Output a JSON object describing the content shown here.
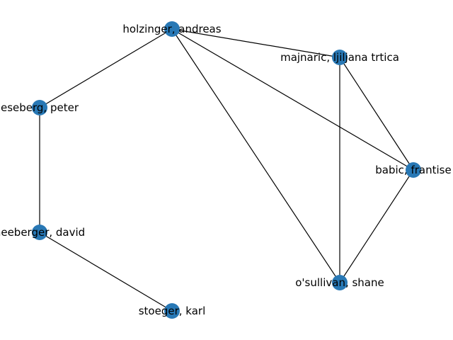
{
  "graph": {
    "node_color": "#2878b5",
    "edge_color": "#000000",
    "nodes": [
      {
        "id": "holzinger",
        "label": "holzinger, andreas"
      },
      {
        "id": "majnaric",
        "label": "majnaric, ljiljana trtica"
      },
      {
        "id": "kieseberg",
        "label": "eseberg, peter"
      },
      {
        "id": "babic",
        "label": "babic, frantise"
      },
      {
        "id": "schneeberger",
        "label": "neeberger, david"
      },
      {
        "id": "osullivan",
        "label": "o'sullivan, shane"
      },
      {
        "id": "stoeger",
        "label": "stoeger, karl"
      }
    ],
    "edges": [
      [
        "holzinger",
        "majnaric"
      ],
      [
        "holzinger",
        "kieseberg"
      ],
      [
        "holzinger",
        "babic"
      ],
      [
        "holzinger",
        "osullivan"
      ],
      [
        "majnaric",
        "babic"
      ],
      [
        "majnaric",
        "osullivan"
      ],
      [
        "babic",
        "osullivan"
      ],
      [
        "kieseberg",
        "schneeberger"
      ],
      [
        "schneeberger",
        "stoeger"
      ]
    ]
  }
}
